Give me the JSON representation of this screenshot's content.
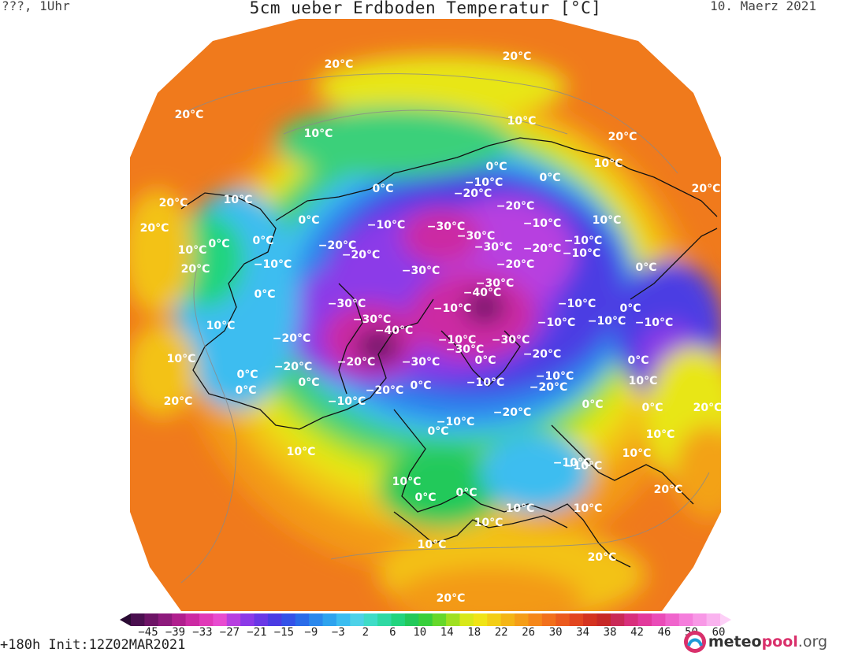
{
  "header": {
    "left": "???, 1Uhr",
    "title": "5cm ueber Erdboden Temperatur [°C]",
    "date": "10. Maerz 2021"
  },
  "footer": {
    "forecast": "+180h Init:12Z02MAR2021",
    "logo_part1": "meteo",
    "logo_part2": "pool",
    "logo_part3": ".org"
  },
  "colorbar": {
    "tick_labels": [
      "−45",
      "−39",
      "−33",
      "−27",
      "−21",
      "−15",
      "−9",
      "−3",
      "2",
      "6",
      "10",
      "14",
      "18",
      "22",
      "26",
      "30",
      "34",
      "38",
      "42",
      "46",
      "50",
      "60"
    ],
    "colors": [
      "#2a0a33",
      "#4a0f4f",
      "#6d1466",
      "#8d1a7c",
      "#b01f8e",
      "#cc2ba3",
      "#e03ab8",
      "#e84cd0",
      "#b73fe0",
      "#8c3ae8",
      "#6a38e6",
      "#4b3ce3",
      "#3452e8",
      "#2a6ce9",
      "#2b88ec",
      "#2ea3ee",
      "#3cbdf0",
      "#4ed2e8",
      "#3fdcc7",
      "#2fd9a3",
      "#22d47e",
      "#22c95a",
      "#38cf3c",
      "#66d82b",
      "#9fe022",
      "#d8e81a",
      "#f0e417",
      "#f3ce16",
      "#f4b516",
      "#f59e18",
      "#f5871a",
      "#f2701c",
      "#eb5a1e",
      "#e2451f",
      "#d43320",
      "#c72826",
      "#c92a57",
      "#d8307c",
      "#e23a9c",
      "#ea4cb8",
      "#f064cc",
      "#f57edc",
      "#f898e6",
      "#fab3ef",
      "#fdd0f7"
    ]
  },
  "map": {
    "labels": [
      {
        "t": "20°C"
      },
      {
        "t": "20°C"
      },
      {
        "t": "20°C"
      },
      {
        "t": "10°C"
      },
      {
        "t": "10°C"
      },
      {
        "t": "20°C"
      },
      {
        "t": "10°C"
      },
      {
        "t": "0°C"
      },
      {
        "t": "−10°C"
      },
      {
        "t": "0°C"
      },
      {
        "t": "0°C"
      },
      {
        "t": "−20°C"
      },
      {
        "t": "10°C"
      },
      {
        "t": "20°C"
      },
      {
        "t": "20°C"
      },
      {
        "t": "10°C"
      },
      {
        "t": "20°C"
      },
      {
        "t": "0°C"
      },
      {
        "t": "−10°C"
      },
      {
        "t": "0°C"
      },
      {
        "t": "−20°C"
      },
      {
        "t": "−30°C"
      },
      {
        "t": "−30°C"
      },
      {
        "t": "−10°C"
      },
      {
        "t": "−20°C"
      },
      {
        "t": "−10°C"
      },
      {
        "t": "10°C"
      },
      {
        "t": "0°C"
      },
      {
        "t": "−20°C"
      },
      {
        "t": "−30°C"
      },
      {
        "t": "−20°C"
      },
      {
        "t": "−30°C"
      },
      {
        "t": "−10°C"
      },
      {
        "t": "−30°C"
      },
      {
        "t": "−20°C"
      },
      {
        "t": "−10°C"
      },
      {
        "t": "0°C"
      },
      {
        "t": "−10°C"
      },
      {
        "t": "10°C"
      },
      {
        "t": "0°C"
      },
      {
        "t": "−40°C"
      },
      {
        "t": "−30°C"
      },
      {
        "t": "0°C"
      },
      {
        "t": "−10°C"
      },
      {
        "t": "−30°C"
      },
      {
        "t": "−40°C"
      },
      {
        "t": "−10°C"
      },
      {
        "t": "−10°C"
      },
      {
        "t": "−10°C"
      },
      {
        "t": "0°C"
      },
      {
        "t": "10°C"
      },
      {
        "t": "−20°C"
      },
      {
        "t": "−20°C"
      },
      {
        "t": "−30°C"
      },
      {
        "t": "−30°C"
      },
      {
        "t": "−20°C"
      },
      {
        "t": "−30°C"
      },
      {
        "t": "0°C"
      },
      {
        "t": "−20°C"
      },
      {
        "t": "−10°C"
      },
      {
        "t": "0°C"
      },
      {
        "t": "0°C"
      },
      {
        "t": "0°C"
      },
      {
        "t": "−20°C"
      },
      {
        "t": "−10°C"
      },
      {
        "t": "−20°C"
      },
      {
        "t": "−10°C"
      },
      {
        "t": "−20°C"
      },
      {
        "t": "0°C"
      },
      {
        "t": "−10°C"
      },
      {
        "t": "0°C"
      },
      {
        "t": "10°C"
      },
      {
        "t": "20°C"
      },
      {
        "t": "10°C"
      },
      {
        "t": "−10°C"
      },
      {
        "t": "−10°C"
      },
      {
        "t": "−10°C"
      },
      {
        "t": "0°C"
      },
      {
        "t": "0°C"
      },
      {
        "t": "10°C"
      },
      {
        "t": "20°C"
      },
      {
        "t": "10°C"
      },
      {
        "t": "20°C"
      },
      {
        "t": "10°C"
      },
      {
        "t": "0°C"
      },
      {
        "t": "0°C"
      },
      {
        "t": "10°C"
      },
      {
        "t": "10°C"
      },
      {
        "t": "10°C"
      },
      {
        "t": "20°C"
      },
      {
        "t": "10°C"
      },
      {
        "t": "20°C"
      },
      {
        "t": "20°C"
      }
    ]
  }
}
